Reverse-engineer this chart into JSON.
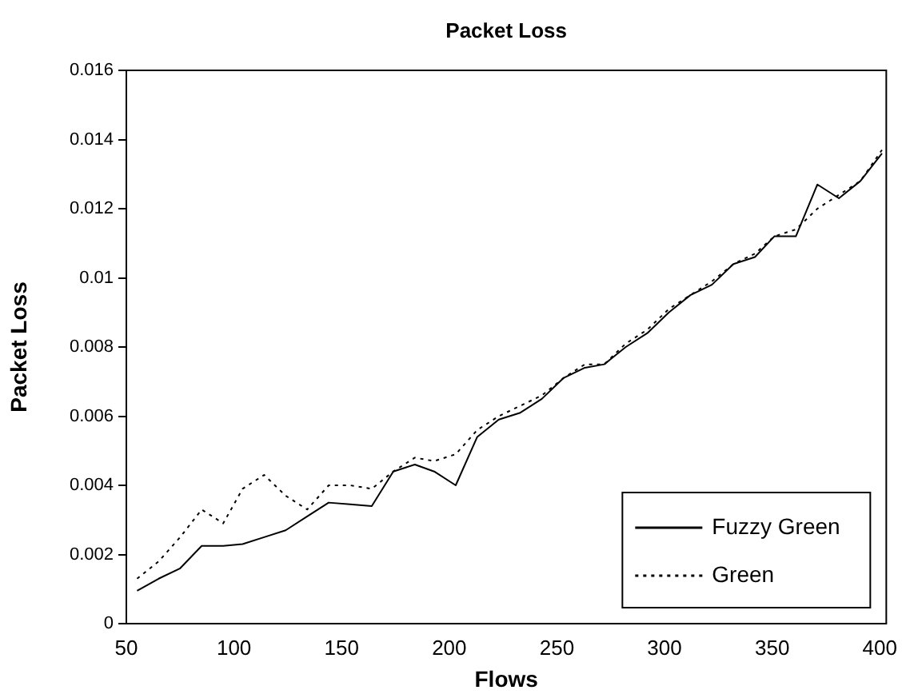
{
  "chart_data": {
    "type": "line",
    "title": "Packet Loss",
    "xlabel": "Flows",
    "ylabel": "Packet Loss",
    "x": [
      55,
      65,
      75,
      85,
      95,
      104,
      114,
      124,
      134,
      144,
      154,
      164,
      174,
      184,
      193,
      203,
      213,
      223,
      233,
      243,
      253,
      263,
      272,
      282,
      292,
      302,
      312,
      322,
      332,
      342,
      351,
      361,
      371,
      381,
      391,
      401
    ],
    "series": [
      {
        "name": "Fuzzy Green",
        "color": "#000000",
        "line_style": "solid",
        "values": [
          0.00095,
          0.0013,
          0.0016,
          0.00225,
          0.00225,
          0.0023,
          0.0025,
          0.0027,
          0.0031,
          0.0035,
          0.00345,
          0.0034,
          0.0044,
          0.0046,
          0.0044,
          0.004,
          0.0054,
          0.0059,
          0.0061,
          0.0065,
          0.0071,
          0.0074,
          0.0075,
          0.008,
          0.0084,
          0.009,
          0.0095,
          0.0098,
          0.0104,
          0.0106,
          0.0112,
          0.0112,
          0.0127,
          0.0123,
          0.0128,
          0.0136
        ]
      },
      {
        "name": "Green",
        "color": "#000000",
        "line_style": "dotted",
        "values": [
          0.0013,
          0.0018,
          0.0025,
          0.0033,
          0.0029,
          0.0039,
          0.0043,
          0.0037,
          0.0033,
          0.004,
          0.004,
          0.0039,
          0.0044,
          0.0048,
          0.0047,
          0.0049,
          0.0056,
          0.006,
          0.0063,
          0.0066,
          0.0071,
          0.0075,
          0.0075,
          0.0081,
          0.0085,
          0.0091,
          0.0095,
          0.0099,
          0.0104,
          0.0107,
          0.0112,
          0.0114,
          0.012,
          0.0124,
          0.0128,
          0.0137
        ]
      }
    ],
    "xlim": [
      50,
      403
    ],
    "xticks": [
      50,
      100,
      150,
      200,
      250,
      300,
      350,
      400
    ],
    "ylim": [
      0,
      0.016
    ],
    "yticks": [
      0,
      0.002,
      0.004,
      0.006,
      0.008,
      0.01,
      0.012,
      0.014,
      0.016
    ],
    "grid": false,
    "legend": "bottom right",
    "marker": "none"
  }
}
